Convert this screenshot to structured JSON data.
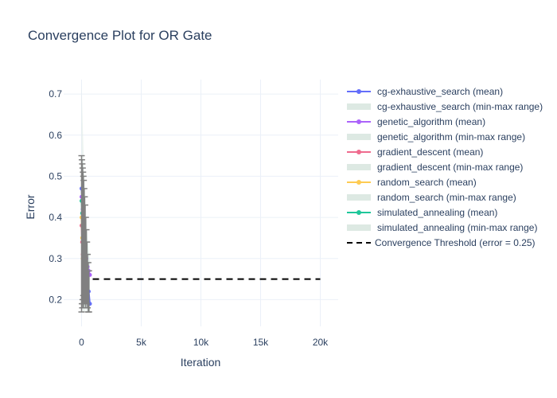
{
  "chart_data": {
    "type": "line",
    "title": "Convergence Plot for OR Gate",
    "xlabel": "Iteration",
    "ylabel": "Error",
    "xlim": [
      -1500,
      21500
    ],
    "ylim": [
      0.135,
      0.735
    ],
    "x_ticks": [
      0,
      5000,
      10000,
      15000,
      20000
    ],
    "x_tick_labels": [
      "0",
      "5k",
      "10k",
      "15k",
      "20k"
    ],
    "y_ticks": [
      0.2,
      0.3,
      0.4,
      0.5,
      0.6,
      0.7
    ],
    "y_tick_labels": [
      "0.2",
      "0.3",
      "0.4",
      "0.5",
      "0.6",
      "0.7"
    ],
    "grid": true,
    "legend_position": "right",
    "threshold": {
      "name": "Convergence Threshold (error = 0.25)",
      "value": 0.25,
      "x_range": [
        0,
        20000
      ],
      "color": "#000000"
    },
    "range_color": "#dde9e3",
    "series": [
      {
        "name": "cg-exhaustive_search (mean)",
        "range_name": "cg-exhaustive_search (min-max range)",
        "color": "#636efa",
        "x": [
          0,
          100,
          200,
          300,
          400,
          500,
          600,
          700
        ],
        "mean": [
          0.47,
          0.42,
          0.36,
          0.31,
          0.28,
          0.25,
          0.22,
          0.19
        ],
        "min": [
          0.2,
          0.19,
          0.18,
          0.18,
          0.17,
          0.17,
          0.17,
          0.17
        ],
        "max": [
          0.55,
          0.54,
          0.5,
          0.46,
          0.4,
          0.36,
          0.32,
          0.28
        ]
      },
      {
        "name": "genetic_algorithm (mean)",
        "range_name": "genetic_algorithm (min-max range)",
        "color": "#ab63fa",
        "x": [
          0,
          100,
          200,
          300,
          400,
          500,
          600,
          700
        ],
        "mean": [
          0.45,
          0.4,
          0.36,
          0.33,
          0.3,
          0.28,
          0.27,
          0.26
        ],
        "min": [
          0.22,
          0.21,
          0.2,
          0.2,
          0.2,
          0.19,
          0.19,
          0.19
        ],
        "max": [
          0.73,
          0.62,
          0.53,
          0.46,
          0.4,
          0.35,
          0.32,
          0.3
        ]
      },
      {
        "name": "gradient_descent (mean)",
        "range_name": "gradient_descent (min-max range)",
        "color": "#ef6b8e",
        "x": [
          0,
          50,
          100,
          150,
          200,
          250,
          300
        ],
        "mean": [
          0.38,
          0.34,
          0.31,
          0.28,
          0.26,
          0.25,
          0.25
        ],
        "min": [
          0.18,
          0.18,
          0.18,
          0.18,
          0.18,
          0.18,
          0.18
        ],
        "max": [
          0.54,
          0.5,
          0.45,
          0.4,
          0.36,
          0.33,
          0.3
        ]
      },
      {
        "name": "random_search (mean)",
        "range_name": "random_search (min-max range)",
        "color": "#fecb52",
        "x": [
          0,
          50,
          100,
          150,
          200,
          250,
          300
        ],
        "mean": [
          0.4,
          0.35,
          0.3,
          0.26,
          0.23,
          0.21,
          0.2
        ],
        "min": [
          0.18,
          0.18,
          0.17,
          0.17,
          0.17,
          0.17,
          0.17
        ],
        "max": [
          0.53,
          0.49,
          0.44,
          0.39,
          0.34,
          0.3,
          0.27
        ]
      },
      {
        "name": "simulated_annealing (mean)",
        "range_name": "simulated_annealing (min-max range)",
        "color": "#1fc79a",
        "x": [
          0,
          50,
          100,
          150,
          200,
          250
        ],
        "mean": [
          0.44,
          0.41,
          0.38,
          0.35,
          0.33,
          0.31
        ],
        "min": [
          0.19,
          0.19,
          0.19,
          0.19,
          0.19,
          0.19
        ],
        "max": [
          0.55,
          0.52,
          0.48,
          0.44,
          0.4,
          0.37
        ]
      }
    ],
    "error_bar_color": "#808080",
    "error_bars": [
      {
        "x": 0,
        "low": 0.17,
        "high": 0.55
      },
      {
        "x": 30,
        "low": 0.19,
        "high": 0.54
      },
      {
        "x": 60,
        "low": 0.18,
        "high": 0.53
      },
      {
        "x": 90,
        "low": 0.2,
        "high": 0.52
      },
      {
        "x": 120,
        "low": 0.19,
        "high": 0.51
      },
      {
        "x": 150,
        "low": 0.21,
        "high": 0.5
      },
      {
        "x": 180,
        "low": 0.18,
        "high": 0.49
      },
      {
        "x": 220,
        "low": 0.2,
        "high": 0.47
      },
      {
        "x": 260,
        "low": 0.19,
        "high": 0.45
      },
      {
        "x": 300,
        "low": 0.21,
        "high": 0.43
      },
      {
        "x": 350,
        "low": 0.18,
        "high": 0.4
      },
      {
        "x": 400,
        "low": 0.2,
        "high": 0.37
      },
      {
        "x": 450,
        "low": 0.19,
        "high": 0.34
      },
      {
        "x": 500,
        "low": 0.18,
        "high": 0.31
      },
      {
        "x": 560,
        "low": 0.17,
        "high": 0.29
      },
      {
        "x": 620,
        "low": 0.17,
        "high": 0.27
      }
    ]
  }
}
